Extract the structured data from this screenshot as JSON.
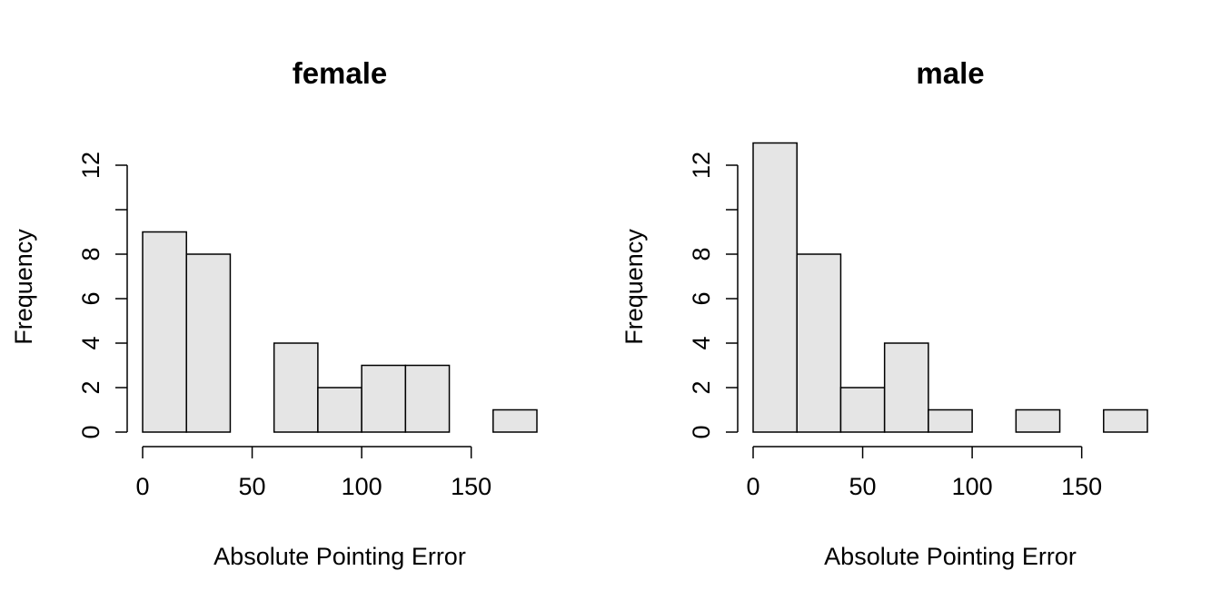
{
  "chart_data": [
    {
      "type": "bar",
      "title": "female",
      "xlabel": "Absolute Pointing Error",
      "ylabel": "Frequency",
      "bins": [
        [
          0,
          20
        ],
        [
          20,
          40
        ],
        [
          40,
          60
        ],
        [
          60,
          80
        ],
        [
          80,
          100
        ],
        [
          100,
          120
        ],
        [
          120,
          140
        ],
        [
          140,
          160
        ],
        [
          160,
          180
        ]
      ],
      "values": [
        9,
        8,
        0,
        4,
        2,
        3,
        3,
        0,
        1
      ],
      "xlim": [
        0,
        180
      ],
      "ylim": [
        0,
        13
      ],
      "x_ticks": [
        0,
        50,
        100,
        150
      ],
      "x_tick_labels": [
        "0",
        "50",
        "100",
        "150"
      ],
      "y_ticks": [
        0,
        2,
        4,
        6,
        8,
        10,
        12
      ],
      "y_tick_labels": [
        "0",
        "2",
        "4",
        "6",
        "8",
        "",
        "12"
      ],
      "grid": false
    },
    {
      "type": "bar",
      "title": "male",
      "xlabel": "Absolute Pointing Error",
      "ylabel": "Frequency",
      "bins": [
        [
          0,
          20
        ],
        [
          20,
          40
        ],
        [
          40,
          60
        ],
        [
          60,
          80
        ],
        [
          80,
          100
        ],
        [
          100,
          120
        ],
        [
          120,
          140
        ],
        [
          140,
          160
        ],
        [
          160,
          180
        ]
      ],
      "values": [
        13,
        8,
        2,
        4,
        1,
        0,
        1,
        0,
        1
      ],
      "xlim": [
        0,
        180
      ],
      "ylim": [
        0,
        13
      ],
      "x_ticks": [
        0,
        50,
        100,
        150
      ],
      "x_tick_labels": [
        "0",
        "50",
        "100",
        "150"
      ],
      "y_ticks": [
        0,
        2,
        4,
        6,
        8,
        10,
        12
      ],
      "y_tick_labels": [
        "0",
        "2",
        "4",
        "6",
        "8",
        "",
        "12"
      ],
      "grid": false
    }
  ]
}
